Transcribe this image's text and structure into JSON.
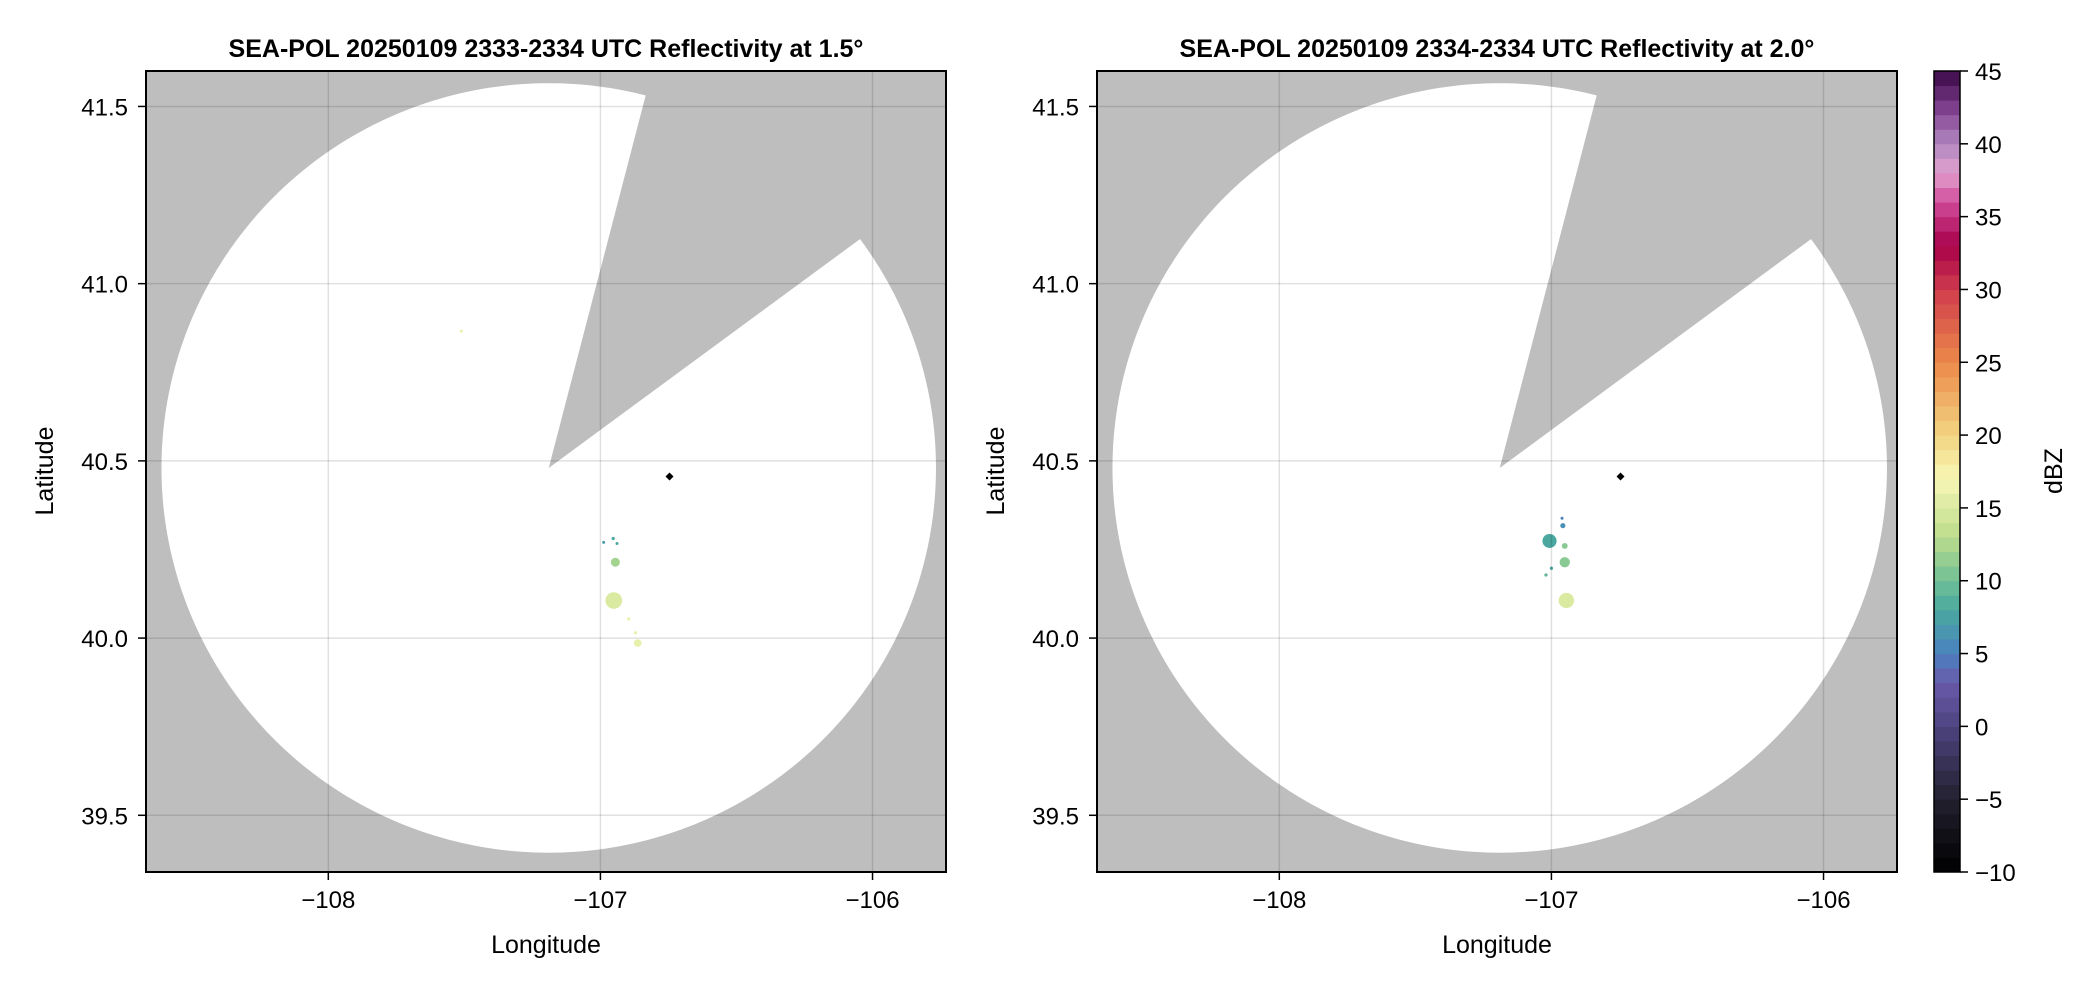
{
  "chart_data": [
    {
      "type": "heatmap",
      "title": "SEA-POL 20250109 2333-2334 UTC Reflectivity at 1.5°",
      "xlabel": "Longitude",
      "ylabel": "Latitude",
      "xlim": [
        -108.67,
        -105.73
      ],
      "ylim": [
        39.34,
        41.6
      ],
      "xticks": [
        -108,
        -107,
        -106
      ],
      "xtick_labels": [
        "−108",
        "−107",
        "−106"
      ],
      "yticks": [
        39.5,
        40.0,
        40.5,
        41.0,
        41.5
      ],
      "ytick_labels": [
        "39.5",
        "40.0",
        "40.5",
        "41.0",
        "41.5"
      ],
      "grid": true,
      "no_data_color": "#bebebe",
      "radar": {
        "lon": -107.19,
        "lat": 40.48,
        "range_km": 120.5,
        "blocked_azimuth_deg": [
          14.5,
          54
        ]
      },
      "marker": {
        "lon": -106.746,
        "lat": 40.456,
        "shape": "diamond",
        "color": "#000000"
      },
      "echoes": [
        {
          "lon": -107.511,
          "lat": 40.866,
          "dbz": 16,
          "radius_km": 0.3
        },
        {
          "lon": -106.988,
          "lat": 40.27,
          "dbz": 7,
          "radius_km": 0.4
        },
        {
          "lon": -106.953,
          "lat": 40.281,
          "dbz": 8,
          "radius_km": 0.5
        },
        {
          "lon": -106.939,
          "lat": 40.267,
          "dbz": 8,
          "radius_km": 0.4
        },
        {
          "lon": -106.945,
          "lat": 40.214,
          "dbz": 12,
          "radius_km": 1.4
        },
        {
          "lon": -106.951,
          "lat": 40.106,
          "dbz": 15,
          "radius_km": 2.6
        },
        {
          "lon": -106.896,
          "lat": 40.054,
          "dbz": 16,
          "radius_km": 0.5
        },
        {
          "lon": -106.871,
          "lat": 40.015,
          "dbz": 16,
          "radius_km": 0.5
        },
        {
          "lon": -106.863,
          "lat": 39.986,
          "dbz": 16,
          "radius_km": 1.2
        }
      ]
    },
    {
      "type": "heatmap",
      "title": "SEA-POL 20250109 2334-2334 UTC Reflectivity at 2.0°",
      "xlabel": "Longitude",
      "ylabel": "Latitude",
      "xlim": [
        -108.67,
        -105.73
      ],
      "ylim": [
        39.34,
        41.6
      ],
      "xticks": [
        -108,
        -107,
        -106
      ],
      "xtick_labels": [
        "−108",
        "−107",
        "−106"
      ],
      "yticks": [
        39.5,
        40.0,
        40.5,
        41.0,
        41.5
      ],
      "ytick_labels": [
        "39.5",
        "40.0",
        "40.5",
        "41.0",
        "41.5"
      ],
      "grid": true,
      "no_data_color": "#bebebe",
      "radar": {
        "lon": -107.19,
        "lat": 40.48,
        "range_km": 120.5,
        "blocked_azimuth_deg": [
          14.5,
          54
        ]
      },
      "marker": {
        "lon": -106.746,
        "lat": 40.456,
        "shape": "diamond",
        "color": "#000000"
      },
      "echoes": [
        {
          "lon": -106.961,
          "lat": 40.338,
          "dbz": 5,
          "radius_km": 0.4
        },
        {
          "lon": -106.958,
          "lat": 40.317,
          "dbz": 6,
          "radius_km": 0.8
        },
        {
          "lon": -107.007,
          "lat": 40.274,
          "dbz": 8,
          "radius_km": 2.2
        },
        {
          "lon": -106.951,
          "lat": 40.26,
          "dbz": 11,
          "radius_km": 0.9
        },
        {
          "lon": -106.951,
          "lat": 40.214,
          "dbz": 11,
          "radius_km": 1.6
        },
        {
          "lon": -107.0,
          "lat": 40.197,
          "dbz": 8,
          "radius_km": 0.5
        },
        {
          "lon": -107.02,
          "lat": 40.178,
          "dbz": 9,
          "radius_km": 0.5
        },
        {
          "lon": -106.945,
          "lat": 40.106,
          "dbz": 15,
          "radius_km": 2.4
        }
      ]
    }
  ],
  "colorbar": {
    "label": "dBZ",
    "range": [
      -10,
      45
    ],
    "step": 1,
    "ticks": [
      -10,
      -5,
      0,
      5,
      10,
      15,
      20,
      25,
      30,
      35,
      40,
      45
    ],
    "tick_labels": [
      "−10",
      "−5",
      "0",
      "5",
      "10",
      "15",
      "20",
      "25",
      "30",
      "35",
      "40",
      "45"
    ],
    "color_stops": [
      [
        -10,
        "#000000"
      ],
      [
        -5,
        "#22202e"
      ],
      [
        0,
        "#4e4480"
      ],
      [
        3,
        "#6a5aaa"
      ],
      [
        5,
        "#4a82c0"
      ],
      [
        8,
        "#4aa8a0"
      ],
      [
        10,
        "#6fbf96"
      ],
      [
        13,
        "#bcdd8c"
      ],
      [
        17,
        "#f7f7b5"
      ],
      [
        20,
        "#f2d482"
      ],
      [
        25,
        "#ec8a4a"
      ],
      [
        30,
        "#d03c4c"
      ],
      [
        33,
        "#a8004a"
      ],
      [
        36,
        "#d04a9a"
      ],
      [
        38,
        "#e2a0ce"
      ],
      [
        40,
        "#b088c0"
      ],
      [
        42,
        "#8a4a98"
      ],
      [
        45,
        "#3a0848"
      ]
    ]
  }
}
